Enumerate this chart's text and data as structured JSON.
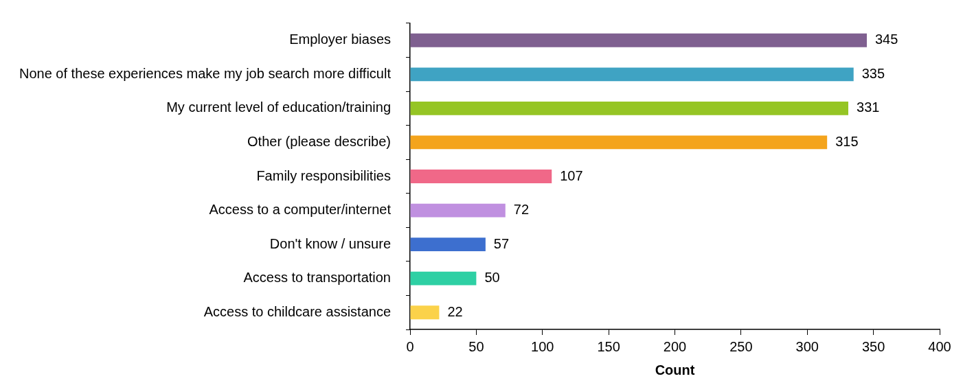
{
  "chart_data": {
    "type": "bar",
    "orientation": "horizontal",
    "xlabel": "Count",
    "categories": [
      "Employer biases",
      "None of these experiences make my job search more difficult",
      "My current level of education/training",
      "Other (please describe)",
      "Family responsibilities",
      "Access to a computer/internet",
      "Don't know / unsure",
      "Access to transportation",
      "Access to childcare assistance"
    ],
    "values": [
      345,
      335,
      331,
      315,
      107,
      72,
      57,
      50,
      22
    ],
    "colors": [
      "#7f6090",
      "#3fa3c3",
      "#95c524",
      "#f4a41c",
      "#f06888",
      "#c090e0",
      "#3d6fcf",
      "#2ed0a4",
      "#fbd24a"
    ],
    "xlim": [
      0,
      400
    ],
    "xticks": [
      0,
      50,
      100,
      150,
      200,
      250,
      300,
      350,
      400
    ],
    "data_labels": true,
    "grid": false
  }
}
